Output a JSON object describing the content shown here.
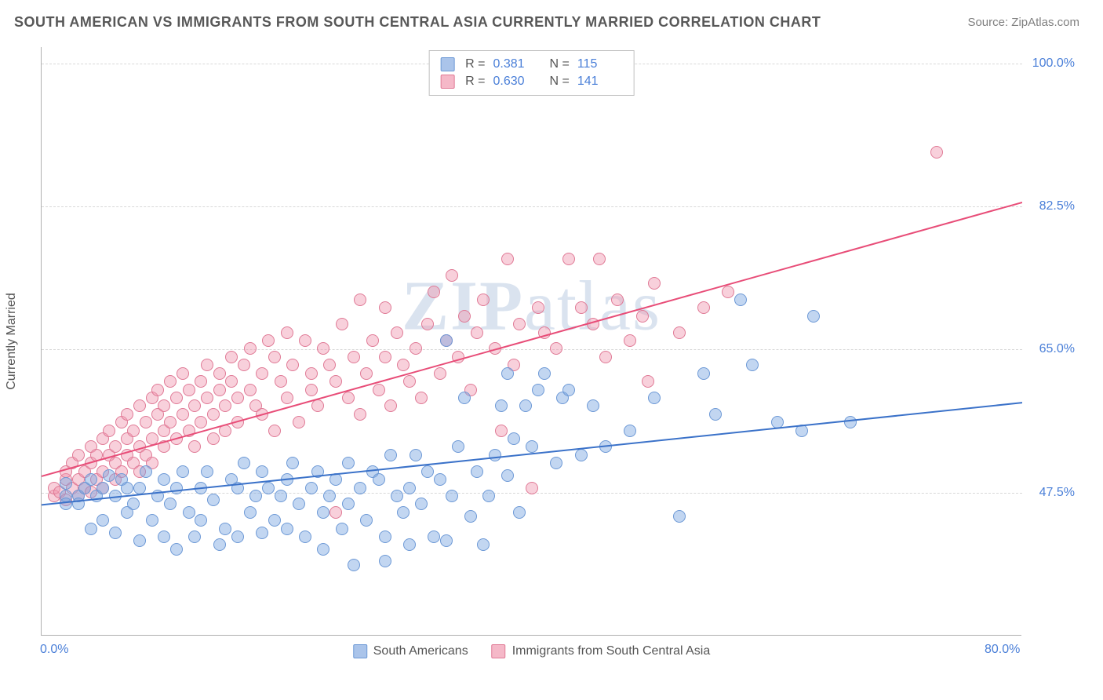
{
  "title": "SOUTH AMERICAN VS IMMIGRANTS FROM SOUTH CENTRAL ASIA CURRENTLY MARRIED CORRELATION CHART",
  "source": "Source: ZipAtlas.com",
  "watermark": "ZIPatlas",
  "y_axis_title": "Currently Married",
  "chart": {
    "type": "scatter",
    "xlim": [
      0,
      80
    ],
    "ylim": [
      30,
      102
    ],
    "x_ticks": [
      {
        "v": 0,
        "label": "0.0%"
      },
      {
        "v": 80,
        "label": "80.0%"
      }
    ],
    "y_ticks": [
      {
        "v": 47.5,
        "label": "47.5%"
      },
      {
        "v": 65.0,
        "label": "65.0%"
      },
      {
        "v": 82.5,
        "label": "82.5%"
      },
      {
        "v": 100.0,
        "label": "100.0%"
      }
    ],
    "grid_color": "#d8d8d8",
    "background_color": "#ffffff",
    "marker_radius": 8,
    "marker_stroke_width": 1.5,
    "trend_line_width": 2
  },
  "series": [
    {
      "name": "South Americans",
      "fill": "rgba(120, 165, 225, 0.45)",
      "stroke": "#6d99d6",
      "swatch_fill": "#aac4ea",
      "swatch_stroke": "#6d99d6",
      "R": "0.381",
      "N": "115",
      "trend": {
        "x1": 0,
        "y1": 46,
        "x2": 80,
        "y2": 58.5,
        "color": "#3b72c9"
      },
      "points": [
        [
          2,
          47
        ],
        [
          2,
          46
        ],
        [
          2,
          48.5
        ],
        [
          3,
          47
        ],
        [
          3,
          46
        ],
        [
          3.5,
          48
        ],
        [
          4,
          43
        ],
        [
          4,
          49
        ],
        [
          4.5,
          47
        ],
        [
          5,
          48
        ],
        [
          5,
          44
        ],
        [
          5.5,
          49.5
        ],
        [
          6,
          47
        ],
        [
          6,
          42.5
        ],
        [
          6.5,
          49
        ],
        [
          7,
          48
        ],
        [
          7,
          45
        ],
        [
          7.5,
          46
        ],
        [
          8,
          41.5
        ],
        [
          8,
          48
        ],
        [
          8.5,
          50
        ],
        [
          9,
          44
        ],
        [
          9.5,
          47
        ],
        [
          10,
          49
        ],
        [
          10,
          42
        ],
        [
          10.5,
          46
        ],
        [
          11,
          48
        ],
        [
          11,
          40.5
        ],
        [
          11.5,
          50
        ],
        [
          12,
          45
        ],
        [
          12.5,
          42
        ],
        [
          13,
          48
        ],
        [
          13,
          44
        ],
        [
          13.5,
          50
        ],
        [
          14,
          46.5
        ],
        [
          14.5,
          41
        ],
        [
          15,
          43
        ],
        [
          15.5,
          49
        ],
        [
          16,
          48
        ],
        [
          16,
          42
        ],
        [
          16.5,
          51
        ],
        [
          17,
          45
        ],
        [
          17.5,
          47
        ],
        [
          18,
          50
        ],
        [
          18,
          42.5
        ],
        [
          18.5,
          48
        ],
        [
          19,
          44
        ],
        [
          19.5,
          47
        ],
        [
          20,
          49
        ],
        [
          20,
          43
        ],
        [
          20.5,
          51
        ],
        [
          21,
          46
        ],
        [
          21.5,
          42
        ],
        [
          22,
          48
        ],
        [
          22.5,
          50
        ],
        [
          23,
          45
        ],
        [
          23,
          40.5
        ],
        [
          23.5,
          47
        ],
        [
          24,
          49
        ],
        [
          24.5,
          43
        ],
        [
          25,
          51
        ],
        [
          25,
          46
        ],
        [
          25.5,
          38.5
        ],
        [
          26,
          48
        ],
        [
          26.5,
          44
        ],
        [
          27,
          50
        ],
        [
          27.5,
          49
        ],
        [
          28,
          42
        ],
        [
          28,
          39
        ],
        [
          28.5,
          52
        ],
        [
          29,
          47
        ],
        [
          29.5,
          45
        ],
        [
          30,
          41
        ],
        [
          30,
          48
        ],
        [
          30.5,
          52
        ],
        [
          31,
          46
        ],
        [
          31.5,
          50
        ],
        [
          32,
          42
        ],
        [
          32.5,
          49
        ],
        [
          33,
          66
        ],
        [
          33,
          41.5
        ],
        [
          33.5,
          47
        ],
        [
          34,
          53
        ],
        [
          34.5,
          59
        ],
        [
          35,
          44.5
        ],
        [
          35.5,
          50
        ],
        [
          36,
          41
        ],
        [
          36.5,
          47
        ],
        [
          37,
          52
        ],
        [
          37.5,
          58
        ],
        [
          38,
          62
        ],
        [
          38,
          49.5
        ],
        [
          38.5,
          54
        ],
        [
          39,
          45
        ],
        [
          39.5,
          58
        ],
        [
          40,
          53
        ],
        [
          40.5,
          60
        ],
        [
          41,
          62
        ],
        [
          42,
          51
        ],
        [
          42.5,
          59
        ],
        [
          43,
          60
        ],
        [
          44,
          52
        ],
        [
          45,
          58
        ],
        [
          46,
          53
        ],
        [
          48,
          55
        ],
        [
          50,
          59
        ],
        [
          52,
          44.5
        ],
        [
          54,
          62
        ],
        [
          55,
          57
        ],
        [
          57,
          71
        ],
        [
          58,
          63
        ],
        [
          60,
          56
        ],
        [
          62,
          55
        ],
        [
          63,
          69
        ],
        [
          66,
          56
        ]
      ]
    },
    {
      "name": "Immigrants from South Central Asia",
      "fill": "rgba(240, 150, 175, 0.45)",
      "stroke": "#e07a96",
      "swatch_fill": "#f5b8c8",
      "swatch_stroke": "#e07a96",
      "R": "0.630",
      "N": "141",
      "trend": {
        "x1": 0,
        "y1": 49.5,
        "x2": 80,
        "y2": 83,
        "color": "#e84d78"
      },
      "points": [
        [
          1,
          47
        ],
        [
          1,
          48
        ],
        [
          1.5,
          47.5
        ],
        [
          2,
          49
        ],
        [
          2,
          46.5
        ],
        [
          2,
          50
        ],
        [
          2.5,
          48
        ],
        [
          2.5,
          51
        ],
        [
          3,
          47
        ],
        [
          3,
          52
        ],
        [
          3,
          49
        ],
        [
          3.5,
          50
        ],
        [
          3.5,
          48
        ],
        [
          4,
          51
        ],
        [
          4,
          53
        ],
        [
          4,
          47.5
        ],
        [
          4.5,
          52
        ],
        [
          4.5,
          49
        ],
        [
          5,
          54
        ],
        [
          5,
          50
        ],
        [
          5,
          48
        ],
        [
          5.5,
          52
        ],
        [
          5.5,
          55
        ],
        [
          6,
          51
        ],
        [
          6,
          53
        ],
        [
          6,
          49
        ],
        [
          6.5,
          56
        ],
        [
          6.5,
          50
        ],
        [
          7,
          54
        ],
        [
          7,
          52
        ],
        [
          7,
          57
        ],
        [
          7.5,
          51
        ],
        [
          7.5,
          55
        ],
        [
          8,
          58
        ],
        [
          8,
          53
        ],
        [
          8,
          50
        ],
        [
          8.5,
          56
        ],
        [
          8.5,
          52
        ],
        [
          9,
          59
        ],
        [
          9,
          54
        ],
        [
          9,
          51
        ],
        [
          9.5,
          57
        ],
        [
          9.5,
          60
        ],
        [
          10,
          55
        ],
        [
          10,
          53
        ],
        [
          10,
          58
        ],
        [
          10.5,
          61
        ],
        [
          10.5,
          56
        ],
        [
          11,
          54
        ],
        [
          11,
          59
        ],
        [
          11.5,
          57
        ],
        [
          11.5,
          62
        ],
        [
          12,
          55
        ],
        [
          12,
          60
        ],
        [
          12.5,
          58
        ],
        [
          12.5,
          53
        ],
        [
          13,
          61
        ],
        [
          13,
          56
        ],
        [
          13.5,
          59
        ],
        [
          13.5,
          63
        ],
        [
          14,
          57
        ],
        [
          14,
          54
        ],
        [
          14.5,
          62
        ],
        [
          14.5,
          60
        ],
        [
          15,
          58
        ],
        [
          15,
          55
        ],
        [
          15.5,
          64
        ],
        [
          15.5,
          61
        ],
        [
          16,
          59
        ],
        [
          16,
          56
        ],
        [
          16.5,
          63
        ],
        [
          17,
          60
        ],
        [
          17,
          65
        ],
        [
          17.5,
          58
        ],
        [
          18,
          57
        ],
        [
          18,
          62
        ],
        [
          18.5,
          66
        ],
        [
          19,
          55
        ],
        [
          19,
          64
        ],
        [
          19.5,
          61
        ],
        [
          20,
          59
        ],
        [
          20,
          67
        ],
        [
          20.5,
          63
        ],
        [
          21,
          56
        ],
        [
          21.5,
          66
        ],
        [
          22,
          60
        ],
        [
          22,
          62
        ],
        [
          22.5,
          58
        ],
        [
          23,
          65
        ],
        [
          23.5,
          63
        ],
        [
          24,
          61
        ],
        [
          24,
          45
        ],
        [
          24.5,
          68
        ],
        [
          25,
          59
        ],
        [
          25.5,
          64
        ],
        [
          26,
          71
        ],
        [
          26,
          57
        ],
        [
          26.5,
          62
        ],
        [
          27,
          66
        ],
        [
          27.5,
          60
        ],
        [
          28,
          64
        ],
        [
          28,
          70
        ],
        [
          28.5,
          58
        ],
        [
          29,
          67
        ],
        [
          29.5,
          63
        ],
        [
          30,
          61
        ],
        [
          30.5,
          65
        ],
        [
          31,
          59
        ],
        [
          31.5,
          68
        ],
        [
          32,
          72
        ],
        [
          32.5,
          62
        ],
        [
          33,
          66
        ],
        [
          33.5,
          74
        ],
        [
          34,
          64
        ],
        [
          34.5,
          69
        ],
        [
          35,
          60
        ],
        [
          35.5,
          67
        ],
        [
          36,
          71
        ],
        [
          37,
          65
        ],
        [
          37.5,
          55
        ],
        [
          38,
          76
        ],
        [
          38.5,
          63
        ],
        [
          39,
          68
        ],
        [
          40,
          48
        ],
        [
          40.5,
          70
        ],
        [
          41,
          67
        ],
        [
          42,
          65
        ],
        [
          43,
          76
        ],
        [
          44,
          70
        ],
        [
          45,
          68
        ],
        [
          45.5,
          76
        ],
        [
          46,
          64
        ],
        [
          47,
          71
        ],
        [
          48,
          66
        ],
        [
          49,
          69
        ],
        [
          49.5,
          61
        ],
        [
          50,
          73
        ],
        [
          52,
          67
        ],
        [
          54,
          70
        ],
        [
          56,
          72
        ],
        [
          73,
          89
        ]
      ]
    }
  ],
  "legend_bottom": [
    {
      "label": "South Americans",
      "series": 0
    },
    {
      "label": "Immigrants from South Central Asia",
      "series": 1
    }
  ]
}
